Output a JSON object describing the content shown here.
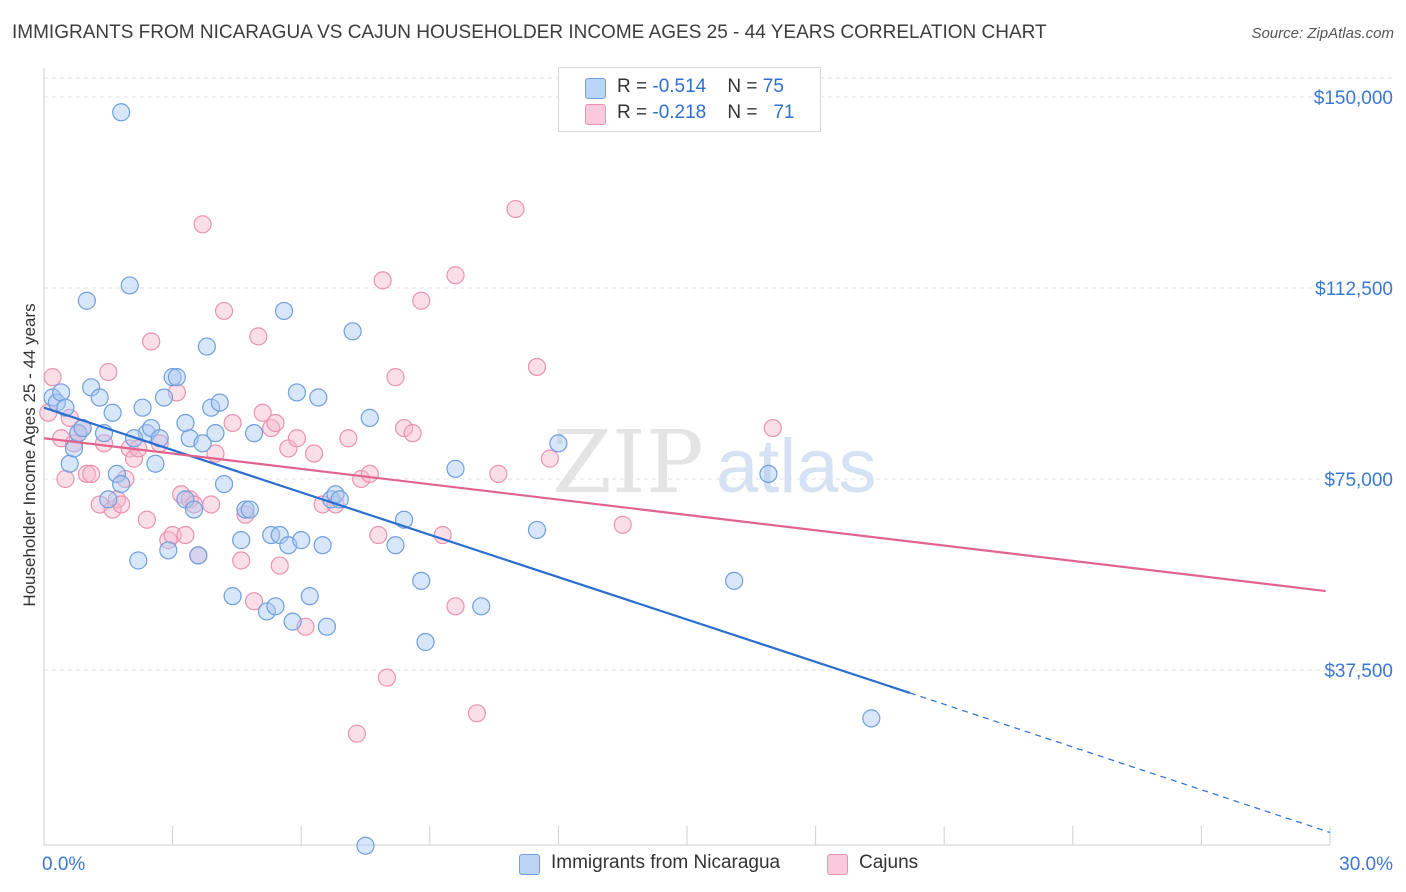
{
  "header": {
    "title": "IMMIGRANTS FROM NICARAGUA VS CAJUN HOUSEHOLDER INCOME AGES 25 - 44 YEARS CORRELATION CHART",
    "source": "Source: ZipAtlas.com"
  },
  "watermark": {
    "zip": "ZIP",
    "atlas": "atlas"
  },
  "colors": {
    "blue_fill": "#a9c8f2",
    "blue_stroke": "#6f9fdd",
    "blue_line": "#2a6fd0",
    "pink_fill": "#f6b7cc",
    "pink_stroke": "#e993b1",
    "pink_line": "#e0648e",
    "axis_label": "#3a78d4"
  },
  "legend": {
    "rows": [
      {
        "r_label": "R = ",
        "r_value": "-0.514",
        "n_label": "N = ",
        "n_value": "75"
      },
      {
        "r_label": "R = ",
        "r_value": "-0.218",
        "n_label": "N = ",
        "n_value": "71"
      }
    ],
    "bottom": [
      "Immigrants from Nicaragua",
      "Cajuns"
    ]
  },
  "chart_data": {
    "type": "scatter",
    "ylabel": "Householder Income Ages 25 - 44 years",
    "xlim": [
      0,
      30
    ],
    "ylim": [
      0,
      152000
    ],
    "x_tick_labels": [
      "0.0%",
      "30.0%"
    ],
    "y_ticks": [
      {
        "value": 37500,
        "label": "$37,500"
      },
      {
        "value": 75000,
        "label": "$75,000"
      },
      {
        "value": 112500,
        "label": "$112,500"
      },
      {
        "value": 150000,
        "label": "$150,000"
      }
    ],
    "grid": true,
    "series": [
      {
        "name": "Immigrants from Nicaragua",
        "trend": {
          "x0": 0,
          "y0": 89000,
          "x1": 20.2,
          "y1": 33000,
          "dash_to_x": 30,
          "dash_to_y": 5600
        },
        "points": [
          [
            0.2,
            91000
          ],
          [
            0.3,
            90000
          ],
          [
            0.4,
            92000
          ],
          [
            0.5,
            89000
          ],
          [
            0.6,
            78000
          ],
          [
            0.7,
            81000
          ],
          [
            0.8,
            84000
          ],
          [
            1.0,
            110000
          ],
          [
            1.1,
            93000
          ],
          [
            1.3,
            91000
          ],
          [
            1.4,
            84000
          ],
          [
            1.5,
            71000
          ],
          [
            1.6,
            88000
          ],
          [
            1.7,
            76000
          ],
          [
            1.8,
            74000
          ],
          [
            1.8,
            147000
          ],
          [
            2.0,
            113000
          ],
          [
            2.2,
            59000
          ],
          [
            2.3,
            89000
          ],
          [
            2.4,
            84000
          ],
          [
            2.5,
            85000
          ],
          [
            2.6,
            78000
          ],
          [
            2.7,
            83000
          ],
          [
            2.8,
            91000
          ],
          [
            2.9,
            61000
          ],
          [
            3.0,
            95000
          ],
          [
            3.1,
            95000
          ],
          [
            3.3,
            71000
          ],
          [
            3.3,
            86000
          ],
          [
            3.4,
            83000
          ],
          [
            3.5,
            69000
          ],
          [
            3.6,
            60000
          ],
          [
            3.7,
            82000
          ],
          [
            3.8,
            101000
          ],
          [
            3.9,
            89000
          ],
          [
            4.0,
            84000
          ],
          [
            4.2,
            74000
          ],
          [
            4.4,
            52000
          ],
          [
            4.6,
            63000
          ],
          [
            4.7,
            69000
          ],
          [
            4.8,
            69000
          ],
          [
            4.9,
            84000
          ],
          [
            5.2,
            49000
          ],
          [
            5.3,
            64000
          ],
          [
            5.4,
            50000
          ],
          [
            5.5,
            64000
          ],
          [
            5.6,
            108000
          ],
          [
            5.7,
            62000
          ],
          [
            5.8,
            47000
          ],
          [
            5.9,
            92000
          ],
          [
            6.0,
            63000
          ],
          [
            6.2,
            52000
          ],
          [
            6.4,
            91000
          ],
          [
            6.5,
            62000
          ],
          [
            6.6,
            46000
          ],
          [
            6.7,
            71000
          ],
          [
            6.8,
            72000
          ],
          [
            6.9,
            71000
          ],
          [
            7.2,
            104000
          ],
          [
            7.5,
            3000
          ],
          [
            7.6,
            87000
          ],
          [
            8.2,
            62000
          ],
          [
            8.4,
            67000
          ],
          [
            8.8,
            55000
          ],
          [
            8.9,
            43000
          ],
          [
            9.6,
            77000
          ],
          [
            10.2,
            50000
          ],
          [
            11.5,
            65000
          ],
          [
            12.0,
            82000
          ],
          [
            16.1,
            55000
          ],
          [
            16.9,
            76000
          ],
          [
            19.3,
            28000
          ],
          [
            0.9,
            85000
          ],
          [
            2.1,
            83000
          ],
          [
            4.1,
            90000
          ]
        ]
      },
      {
        "name": "Cajuns",
        "trend": {
          "x0": 0,
          "y0": 83000,
          "x1": 29.9,
          "y1": 53000
        },
        "points": [
          [
            0.1,
            88000
          ],
          [
            0.2,
            95000
          ],
          [
            0.4,
            83000
          ],
          [
            0.5,
            75000
          ],
          [
            0.6,
            87000
          ],
          [
            0.7,
            82000
          ],
          [
            0.8,
            84000
          ],
          [
            0.9,
            85000
          ],
          [
            1.0,
            76000
          ],
          [
            1.1,
            76000
          ],
          [
            1.3,
            70000
          ],
          [
            1.4,
            82000
          ],
          [
            1.5,
            96000
          ],
          [
            1.6,
            69000
          ],
          [
            1.7,
            71000
          ],
          [
            1.8,
            70000
          ],
          [
            1.9,
            75000
          ],
          [
            2.0,
            81000
          ],
          [
            2.1,
            79000
          ],
          [
            2.2,
            81000
          ],
          [
            2.4,
            67000
          ],
          [
            2.5,
            102000
          ],
          [
            2.7,
            82000
          ],
          [
            2.9,
            63000
          ],
          [
            3.0,
            64000
          ],
          [
            3.1,
            92000
          ],
          [
            3.2,
            72000
          ],
          [
            3.3,
            64000
          ],
          [
            3.4,
            71000
          ],
          [
            3.5,
            70000
          ],
          [
            3.6,
            60000
          ],
          [
            3.7,
            125000
          ],
          [
            3.9,
            70000
          ],
          [
            4.0,
            80000
          ],
          [
            4.2,
            108000
          ],
          [
            4.4,
            86000
          ],
          [
            4.6,
            59000
          ],
          [
            4.7,
            68000
          ],
          [
            4.9,
            51000
          ],
          [
            5.0,
            103000
          ],
          [
            5.1,
            88000
          ],
          [
            5.3,
            85000
          ],
          [
            5.4,
            86000
          ],
          [
            5.5,
            58000
          ],
          [
            5.7,
            81000
          ],
          [
            5.9,
            83000
          ],
          [
            6.1,
            46000
          ],
          [
            6.3,
            80000
          ],
          [
            6.5,
            70000
          ],
          [
            6.8,
            70000
          ],
          [
            7.1,
            83000
          ],
          [
            7.3,
            25000
          ],
          [
            7.4,
            75000
          ],
          [
            7.6,
            76000
          ],
          [
            7.8,
            64000
          ],
          [
            7.9,
            114000
          ],
          [
            8.0,
            36000
          ],
          [
            8.2,
            95000
          ],
          [
            8.4,
            85000
          ],
          [
            8.6,
            84000
          ],
          [
            8.8,
            110000
          ],
          [
            9.3,
            64000
          ],
          [
            9.6,
            50000
          ],
          [
            9.6,
            115000
          ],
          [
            10.1,
            29000
          ],
          [
            10.6,
            76000
          ],
          [
            11.0,
            128000
          ],
          [
            11.5,
            97000
          ],
          [
            11.8,
            79000
          ],
          [
            13.5,
            66000
          ],
          [
            17.0,
            85000
          ]
        ]
      }
    ]
  }
}
